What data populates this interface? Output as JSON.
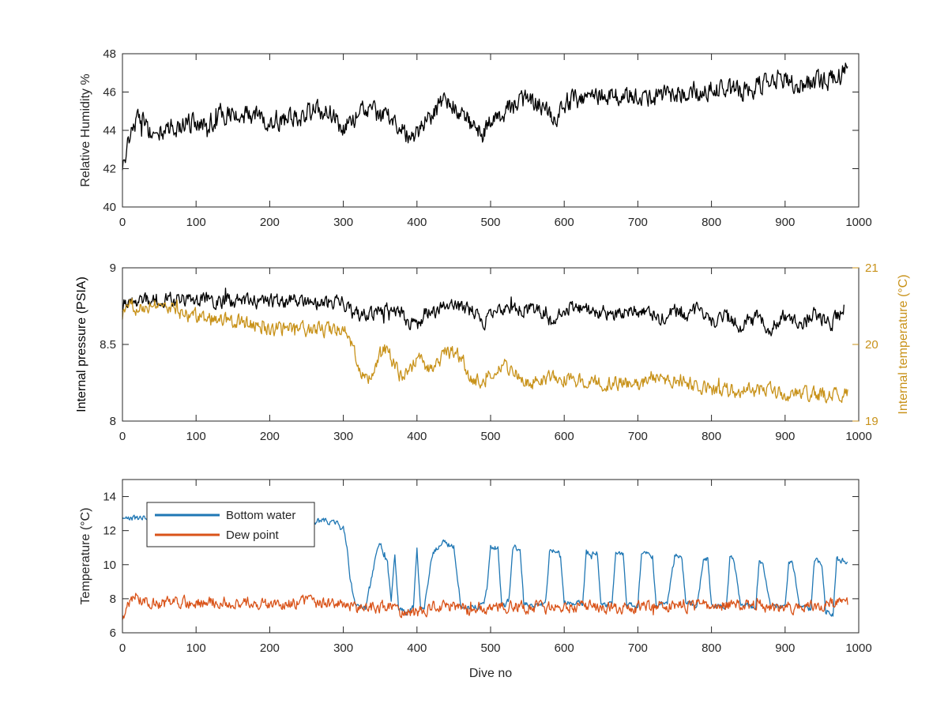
{
  "colors": {
    "humidity": "#000000",
    "pressure": "#000000",
    "internal_temp": "#C8921A",
    "bottom_water": "#1F77B4",
    "dew_point": "#D95319",
    "axis": "#262626"
  },
  "chart_data": [
    {
      "type": "line",
      "title": "",
      "xlabel": "",
      "ylabel": "Relative Humidity %",
      "xlim": [
        0,
        1000
      ],
      "ylim": [
        40,
        48
      ],
      "xticks": [
        0,
        100,
        200,
        300,
        400,
        500,
        600,
        700,
        800,
        900,
        1000
      ],
      "yticks": [
        40,
        42,
        44,
        46,
        48
      ],
      "grid": false,
      "series": [
        {
          "color": "#000000",
          "noise": 0.45,
          "x": [
            0,
            5,
            10,
            20,
            30,
            40,
            60,
            80,
            100,
            130,
            160,
            200,
            230,
            260,
            290,
            300,
            310,
            320,
            340,
            360,
            380,
            395,
            405,
            420,
            440,
            460,
            480,
            490,
            500,
            520,
            540,
            560,
            575,
            585,
            600,
            640,
            680,
            720,
            760,
            800,
            840,
            880,
            900,
            920,
            940,
            960,
            975,
            985
          ],
          "y": [
            41.8,
            43.0,
            43.9,
            44.6,
            44.4,
            43.7,
            44.0,
            44.3,
            44.4,
            44.6,
            44.9,
            44.5,
            44.6,
            45.0,
            44.8,
            44.1,
            44.4,
            45.0,
            44.9,
            44.7,
            44.2,
            43.4,
            44.0,
            44.9,
            45.5,
            45.0,
            44.0,
            43.8,
            44.5,
            45.0,
            45.5,
            45.5,
            45.3,
            44.2,
            45.5,
            45.7,
            45.9,
            45.8,
            46.0,
            46.1,
            46.0,
            46.6,
            46.7,
            46.3,
            46.5,
            46.7,
            46.9,
            47.3
          ]
        }
      ]
    },
    {
      "type": "line",
      "title": "",
      "xlabel": "",
      "ylabel": "Internal pressure (PSIA)",
      "y2label": "Internal temperature (°C)",
      "xlim": [
        0,
        1000
      ],
      "ylim": [
        8,
        9
      ],
      "y2lim": [
        19,
        21
      ],
      "xticks": [
        0,
        100,
        200,
        300,
        400,
        500,
        600,
        700,
        800,
        900,
        1000
      ],
      "yticks": [
        8,
        8.5,
        9
      ],
      "ytick_labels": [
        "8",
        "8.5",
        "9"
      ],
      "y2ticks": [
        19,
        20,
        21
      ],
      "grid": false,
      "series": [
        {
          "axis": "left",
          "color": "#000000",
          "noise": 0.04,
          "x": [
            0,
            10,
            50,
            100,
            150,
            200,
            250,
            300,
            310,
            320,
            340,
            360,
            370,
            380,
            390,
            400,
            410,
            420,
            430,
            450,
            470,
            480,
            490,
            500,
            520,
            540,
            560,
            575,
            585,
            600,
            620,
            640,
            650,
            670,
            700,
            720,
            730,
            750,
            760,
            780,
            800,
            820,
            840,
            860,
            880,
            900,
            920,
            940,
            960,
            980
          ],
          "y": [
            8.75,
            8.79,
            8.79,
            8.79,
            8.78,
            8.78,
            8.78,
            8.77,
            8.71,
            8.7,
            8.7,
            8.74,
            8.72,
            8.7,
            8.63,
            8.62,
            8.7,
            8.7,
            8.74,
            8.75,
            8.72,
            8.7,
            8.63,
            8.7,
            8.73,
            8.74,
            8.72,
            8.7,
            8.63,
            8.73,
            8.74,
            8.7,
            8.72,
            8.7,
            8.72,
            8.7,
            8.66,
            8.73,
            8.68,
            8.72,
            8.64,
            8.7,
            8.6,
            8.7,
            8.6,
            8.7,
            8.62,
            8.7,
            8.62,
            8.74
          ]
        },
        {
          "axis": "right",
          "color": "#C8921A",
          "noise": 0.08,
          "x": [
            0,
            10,
            30,
            55,
            80,
            100,
            150,
            180,
            200,
            250,
            300,
            310,
            320,
            330,
            340,
            350,
            360,
            370,
            380,
            400,
            420,
            440,
            460,
            470,
            480,
            500,
            520,
            540,
            560,
            580,
            600,
            640,
            680,
            700,
            720,
            740,
            760,
            780,
            800,
            840,
            880,
            900,
            920,
            940,
            960,
            985
          ],
          "y": [
            20.4,
            20.52,
            20.5,
            20.55,
            20.4,
            20.35,
            20.3,
            20.25,
            20.2,
            20.2,
            20.2,
            20.05,
            19.75,
            19.55,
            19.6,
            19.9,
            19.95,
            19.7,
            19.55,
            19.8,
            19.7,
            19.9,
            19.85,
            19.6,
            19.5,
            19.6,
            19.75,
            19.55,
            19.5,
            19.6,
            19.55,
            19.5,
            19.5,
            19.45,
            19.6,
            19.5,
            19.55,
            19.45,
            19.4,
            19.4,
            19.4,
            19.35,
            19.35,
            19.35,
            19.35,
            19.35
          ]
        }
      ]
    },
    {
      "type": "line",
      "title": "",
      "xlabel": "Dive no",
      "ylabel": "Temperature (°C)",
      "xlim": [
        0,
        1000
      ],
      "ylim": [
        6,
        15
      ],
      "xticks": [
        0,
        100,
        200,
        300,
        400,
        500,
        600,
        700,
        800,
        900,
        1000
      ],
      "yticks": [
        6,
        8,
        10,
        12,
        14
      ],
      "grid": false,
      "legend": "top-left",
      "series": [
        {
          "name": "Bottom water",
          "color": "#1F77B4",
          "noise": 0.15,
          "x": [
            0,
            10,
            20,
            50,
            100,
            150,
            200,
            250,
            290,
            300,
            305,
            310,
            315,
            320,
            330,
            340,
            345,
            350,
            360,
            365,
            370,
            375,
            380,
            385,
            390,
            395,
            400,
            405,
            410,
            420,
            430,
            440,
            450,
            460,
            465,
            470,
            490,
            495,
            500,
            510,
            515,
            520,
            525,
            530,
            540,
            545,
            550,
            560,
            570,
            575,
            580,
            590,
            595,
            600,
            610,
            620,
            625,
            630,
            640,
            645,
            650,
            660,
            665,
            670,
            680,
            685,
            690,
            700,
            705,
            710,
            720,
            725,
            730,
            740,
            750,
            755,
            760,
            765,
            770,
            780,
            790,
            795,
            800,
            810,
            820,
            825,
            830,
            840,
            850,
            860,
            865,
            870,
            880,
            890,
            900,
            905,
            910,
            920,
            930,
            935,
            940,
            950,
            955,
            960,
            965,
            970,
            980,
            985
          ],
          "y": [
            12.8,
            12.7,
            12.7,
            12.8,
            12.8,
            12.75,
            12.7,
            12.6,
            12.5,
            12.2,
            11.0,
            9.0,
            7.8,
            7.6,
            7.5,
            9.5,
            10.8,
            11.3,
            10.0,
            7.8,
            10.5,
            7.5,
            7.3,
            7.2,
            7.3,
            7.4,
            11.0,
            7.4,
            7.4,
            10.5,
            11.2,
            11.3,
            11.0,
            7.5,
            7.4,
            7.5,
            7.6,
            8.5,
            11.0,
            11.0,
            7.6,
            7.6,
            8.0,
            11.0,
            11.0,
            7.8,
            7.7,
            7.6,
            7.6,
            8.0,
            10.8,
            10.8,
            10.5,
            7.8,
            7.7,
            7.7,
            7.6,
            10.7,
            10.7,
            10.7,
            7.7,
            7.7,
            7.6,
            10.7,
            10.6,
            7.7,
            7.7,
            7.6,
            10.6,
            10.6,
            10.5,
            7.7,
            7.7,
            7.6,
            10.5,
            10.4,
            10.3,
            7.7,
            7.7,
            7.6,
            10.4,
            10.3,
            7.6,
            7.6,
            7.5,
            10.3,
            10.3,
            7.6,
            7.6,
            7.5,
            10.2,
            10.2,
            7.6,
            7.6,
            7.5,
            10.2,
            10.2,
            7.5,
            7.4,
            7.4,
            10.2,
            10.1,
            7.3,
            7.2,
            7.0,
            10.3,
            10.2,
            10.2
          ]
        },
        {
          "name": "Dew point",
          "color": "#D95319",
          "noise": 0.3,
          "x": [
            0,
            5,
            15,
            30,
            50,
            100,
            150,
            200,
            250,
            300,
            310,
            320,
            340,
            360,
            380,
            400,
            420,
            440,
            460,
            480,
            500,
            550,
            600,
            650,
            700,
            750,
            800,
            850,
            900,
            950,
            985
          ],
          "y": [
            6.8,
            7.5,
            7.9,
            7.8,
            7.7,
            7.8,
            7.8,
            7.7,
            7.8,
            7.7,
            7.6,
            7.4,
            7.5,
            7.6,
            7.2,
            7.2,
            7.5,
            7.6,
            7.4,
            7.3,
            7.5,
            7.5,
            7.5,
            7.5,
            7.5,
            7.6,
            7.6,
            7.6,
            7.5,
            7.6,
            7.8
          ]
        }
      ]
    }
  ]
}
